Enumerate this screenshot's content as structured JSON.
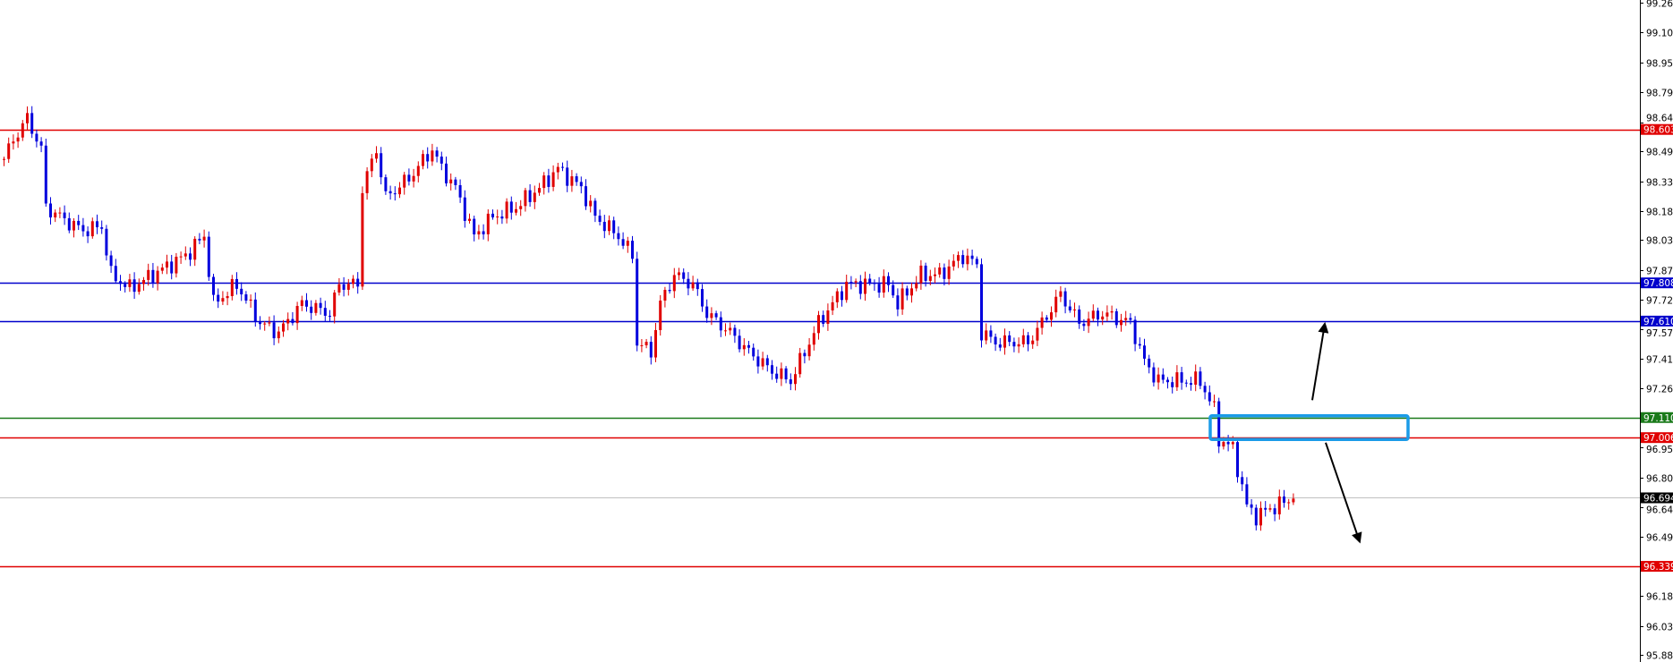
{
  "chart_data": {
    "type": "candlestick",
    "title": "",
    "xlabel": "",
    "ylabel": "",
    "ylim": [
      95.88,
      99.26
    ],
    "grid": false,
    "y_ticks": [
      "99.260",
      "99.105",
      "98.950",
      "98.795",
      "98.640",
      "98.490",
      "98.335",
      "98.180",
      "98.030",
      "97.875",
      "97.720",
      "97.570",
      "97.415",
      "97.260",
      "96.955",
      "96.800",
      "96.645",
      "96.490",
      "96.185",
      "96.030",
      "95.880"
    ],
    "up_color": "#e00000",
    "down_color": "#0000dd",
    "close_path": [
      [
        0,
        98.45
      ],
      [
        2,
        98.55
      ],
      [
        5,
        98.66
      ],
      [
        8,
        98.5
      ],
      [
        9,
        98.2
      ],
      [
        14,
        98.12
      ],
      [
        17,
        98.08
      ],
      [
        21,
        98.1
      ],
      [
        23,
        97.85
      ],
      [
        27,
        97.78
      ],
      [
        32,
        97.85
      ],
      [
        39,
        97.95
      ],
      [
        43,
        98.05
      ],
      [
        45,
        97.7
      ],
      [
        50,
        97.8
      ],
      [
        55,
        97.6
      ],
      [
        59,
        97.55
      ],
      [
        64,
        97.7
      ],
      [
        70,
        97.65
      ],
      [
        72,
        97.8
      ],
      [
        76,
        97.8
      ],
      [
        77,
        98.3
      ],
      [
        80,
        98.5
      ],
      [
        82,
        98.25
      ],
      [
        87,
        98.35
      ],
      [
        92,
        98.5
      ],
      [
        94,
        98.4
      ],
      [
        97,
        98.3
      ],
      [
        101,
        98.05
      ],
      [
        105,
        98.15
      ],
      [
        110,
        98.2
      ],
      [
        115,
        98.3
      ],
      [
        119,
        98.4
      ],
      [
        124,
        98.3
      ],
      [
        127,
        98.15
      ],
      [
        132,
        98.05
      ],
      [
        135,
        97.95
      ],
      [
        136,
        97.5
      ],
      [
        139,
        97.45
      ],
      [
        141,
        97.7
      ],
      [
        144,
        97.85
      ],
      [
        148,
        97.8
      ],
      [
        151,
        97.65
      ],
      [
        156,
        97.55
      ],
      [
        160,
        97.45
      ],
      [
        165,
        97.35
      ],
      [
        169,
        97.3
      ],
      [
        172,
        97.45
      ],
      [
        175,
        97.6
      ],
      [
        181,
        97.8
      ],
      [
        185,
        97.8
      ],
      [
        190,
        97.8
      ],
      [
        192,
        97.7
      ],
      [
        197,
        97.85
      ],
      [
        201,
        97.85
      ],
      [
        206,
        97.95
      ],
      [
        209,
        97.9
      ],
      [
        210,
        97.55
      ],
      [
        213,
        97.5
      ],
      [
        220,
        97.5
      ],
      [
        223,
        97.6
      ],
      [
        227,
        97.75
      ],
      [
        231,
        97.6
      ],
      [
        236,
        97.65
      ],
      [
        242,
        97.6
      ],
      [
        245,
        97.4
      ],
      [
        248,
        97.3
      ],
      [
        252,
        97.3
      ],
      [
        257,
        97.3
      ],
      [
        260,
        97.15
      ],
      [
        261,
        97.0
      ],
      [
        264,
        96.95
      ],
      [
        267,
        96.65
      ],
      [
        269,
        96.6
      ],
      [
        273,
        96.65
      ],
      [
        277,
        96.69
      ]
    ],
    "levels": [
      {
        "name": "resistance-98603",
        "price": 98.603,
        "label": "98.603",
        "color": "#e00000"
      },
      {
        "name": "level-97808",
        "price": 97.808,
        "label": "97.808",
        "color": "#0000cc"
      },
      {
        "name": "level-97610",
        "price": 97.61,
        "label": "97.610",
        "color": "#0000cc"
      },
      {
        "name": "level-97110",
        "price": 97.11,
        "label": "97.110",
        "color": "#1a7a1a"
      },
      {
        "name": "level-97006",
        "price": 97.006,
        "label": "97.006",
        "color": "#e00000"
      },
      {
        "name": "current-price",
        "price": 96.694,
        "label": "96.694",
        "color": "#c0c0c0",
        "label_bg": "#000000"
      },
      {
        "name": "support-96339",
        "price": 96.339,
        "label": "96.339",
        "color": "#e00000"
      }
    ],
    "zone": {
      "price_top": 97.11,
      "price_bottom": 97.006,
      "color": "#1a9be8"
    },
    "arrows": [
      {
        "name": "up-arrow",
        "direction": "up",
        "target_price": 97.61
      },
      {
        "name": "down-arrow",
        "direction": "down",
        "target_price": 96.48
      }
    ]
  }
}
